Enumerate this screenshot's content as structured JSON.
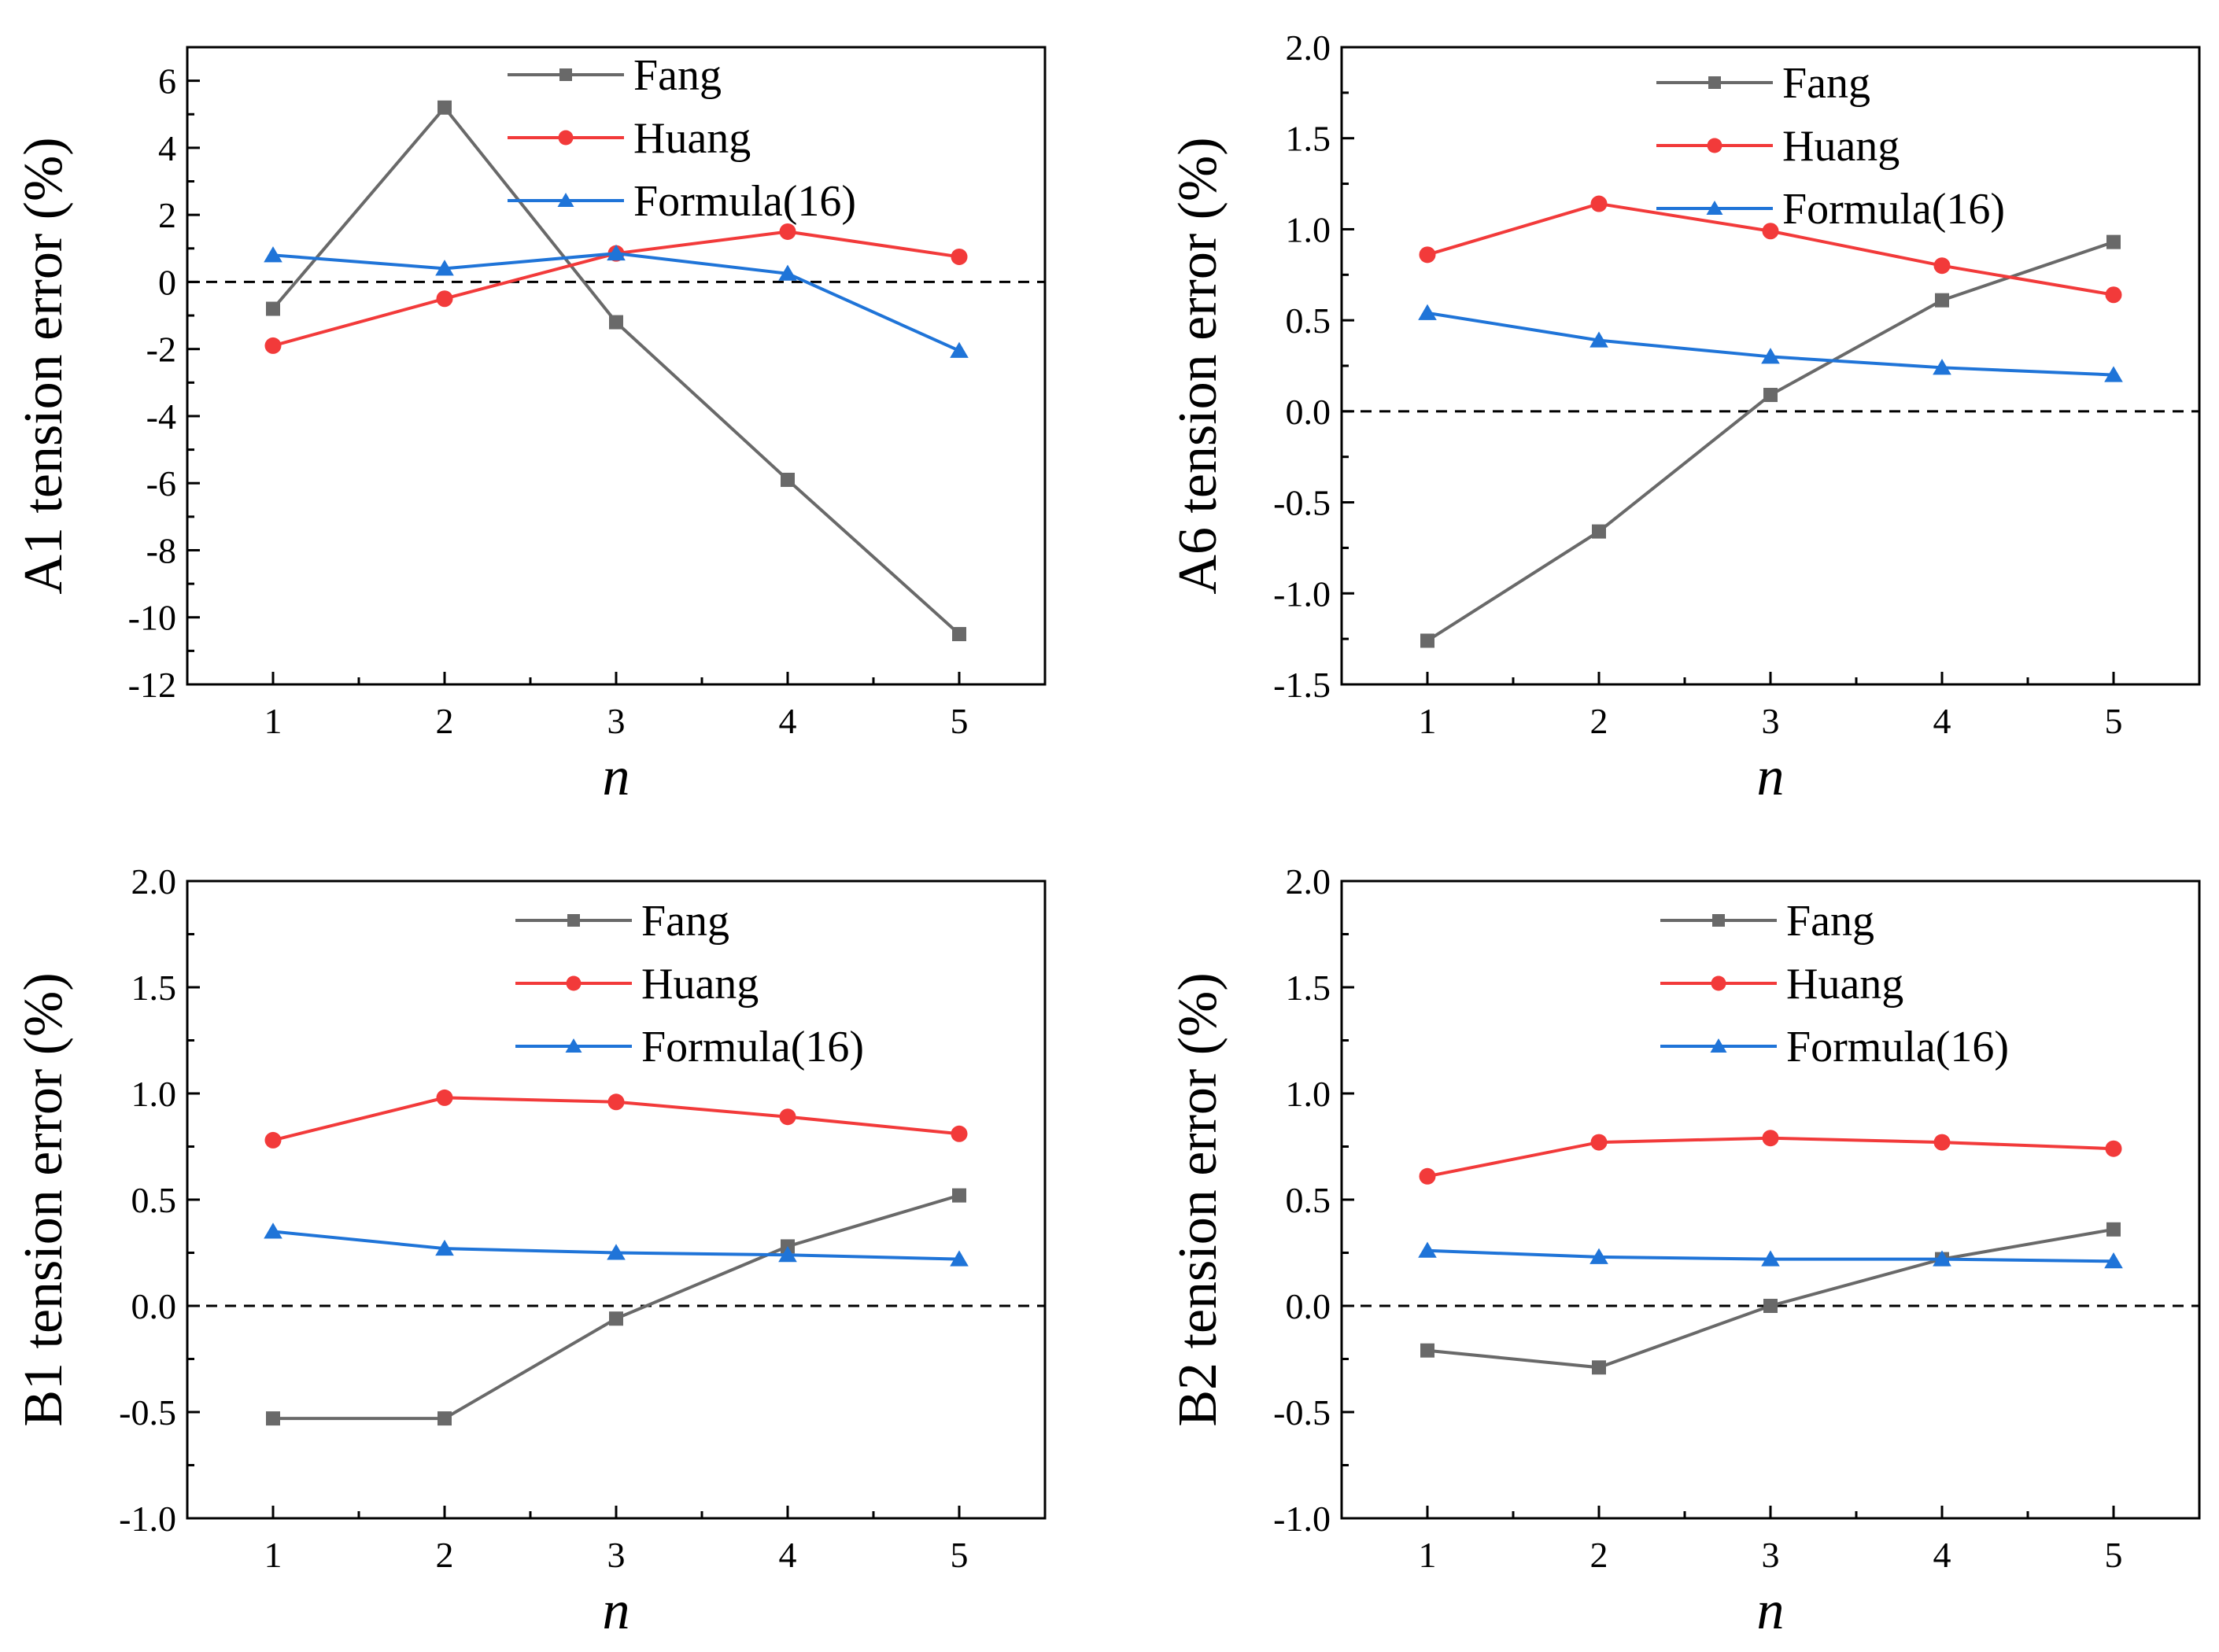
{
  "chart_data": [
    {
      "type": "line",
      "xlabel": "n",
      "ylabel": "A1 tension error (%)",
      "x": [
        1,
        2,
        3,
        4,
        5
      ],
      "xlim": [
        0.5,
        5.5
      ],
      "ylim": [
        -12,
        7
      ],
      "yticks": [
        -12,
        -10,
        -8,
        -6,
        -4,
        -2,
        0,
        2,
        4,
        6
      ],
      "ytick_labels": [
        "-12",
        "-10",
        "-8",
        "-6",
        "-4",
        "-2",
        "0",
        "2",
        "4",
        "6"
      ],
      "xtick_labels": [
        "1",
        "2",
        "3",
        "4",
        "5"
      ],
      "reference_line": 0,
      "legend_position": "top-right",
      "series": [
        {
          "name": "Fang",
          "color": "#696969",
          "marker": "square",
          "values": [
            -0.8,
            5.2,
            -1.2,
            -5.9,
            -10.5
          ]
        },
        {
          "name": "Huang",
          "color": "#f23a3a",
          "marker": "circle",
          "values": [
            -1.9,
            -0.5,
            0.85,
            1.5,
            0.75
          ]
        },
        {
          "name": "Formula(16)",
          "color": "#1f74d8",
          "marker": "triangle",
          "values": [
            0.8,
            0.4,
            0.85,
            0.25,
            -2.05
          ]
        }
      ]
    },
    {
      "type": "line",
      "xlabel": "n",
      "ylabel": "A6 tension error (%)",
      "x": [
        1,
        2,
        3,
        4,
        5
      ],
      "xlim": [
        0.5,
        5.5
      ],
      "ylim": [
        -1.5,
        2.0
      ],
      "yticks": [
        -1.5,
        -1.0,
        -0.5,
        0.0,
        0.5,
        1.0,
        1.5,
        2.0
      ],
      "ytick_labels": [
        "-1.5",
        "-1.0",
        "-0.5",
        "0.0",
        "0.5",
        "1.0",
        "1.5",
        "2.0"
      ],
      "xtick_labels": [
        "1",
        "2",
        "3",
        "4",
        "5"
      ],
      "reference_line": 0,
      "legend_position": "top-right",
      "series": [
        {
          "name": "Fang",
          "color": "#696969",
          "marker": "square",
          "values": [
            -1.26,
            -0.66,
            0.09,
            0.61,
            0.93
          ]
        },
        {
          "name": "Huang",
          "color": "#f23a3a",
          "marker": "circle",
          "values": [
            0.86,
            1.14,
            0.99,
            0.8,
            0.64
          ]
        },
        {
          "name": "Formula(16)",
          "color": "#1f74d8",
          "marker": "triangle",
          "values": [
            0.54,
            0.39,
            0.3,
            0.24,
            0.2
          ]
        }
      ]
    },
    {
      "type": "line",
      "xlabel": "n",
      "ylabel": "B1 tension error (%)",
      "x": [
        1,
        2,
        3,
        4,
        5
      ],
      "xlim": [
        0.5,
        5.5
      ],
      "ylim": [
        -1.0,
        2.0
      ],
      "yticks": [
        -1.0,
        -0.5,
        0.0,
        0.5,
        1.0,
        1.5,
        2.0
      ],
      "ytick_labels": [
        "-1.0",
        "-0.5",
        "0.0",
        "0.5",
        "1.0",
        "1.5",
        "2.0"
      ],
      "xtick_labels": [
        "1",
        "2",
        "3",
        "4",
        "5"
      ],
      "reference_line": 0,
      "legend_position": "top-right",
      "series": [
        {
          "name": "Fang",
          "color": "#696969",
          "marker": "square",
          "values": [
            -0.53,
            -0.53,
            -0.06,
            0.28,
            0.52
          ]
        },
        {
          "name": "Huang",
          "color": "#f23a3a",
          "marker": "circle",
          "values": [
            0.78,
            0.98,
            0.96,
            0.89,
            0.81
          ]
        },
        {
          "name": "Formula(16)",
          "color": "#1f74d8",
          "marker": "triangle",
          "values": [
            0.35,
            0.27,
            0.25,
            0.24,
            0.22
          ]
        }
      ]
    },
    {
      "type": "line",
      "xlabel": "n",
      "ylabel": "B2 tension error (%)",
      "x": [
        1,
        2,
        3,
        4,
        5
      ],
      "xlim": [
        0.5,
        5.5
      ],
      "ylim": [
        -1.0,
        2.0
      ],
      "yticks": [
        -1.0,
        -0.5,
        0.0,
        0.5,
        1.0,
        1.5,
        2.0
      ],
      "ytick_labels": [
        "-1.0",
        "-0.5",
        "0.0",
        "0.5",
        "1.0",
        "1.5",
        "2.0"
      ],
      "xtick_labels": [
        "1",
        "2",
        "3",
        "4",
        "5"
      ],
      "reference_line": 0,
      "legend_position": "top-right",
      "series": [
        {
          "name": "Fang",
          "color": "#696969",
          "marker": "square",
          "values": [
            -0.21,
            -0.29,
            0.0,
            0.22,
            0.36
          ]
        },
        {
          "name": "Huang",
          "color": "#f23a3a",
          "marker": "circle",
          "values": [
            0.61,
            0.77,
            0.79,
            0.77,
            0.74
          ]
        },
        {
          "name": "Formula(16)",
          "color": "#1f74d8",
          "marker": "triangle",
          "values": [
            0.26,
            0.23,
            0.22,
            0.22,
            0.21
          ]
        }
      ]
    }
  ]
}
